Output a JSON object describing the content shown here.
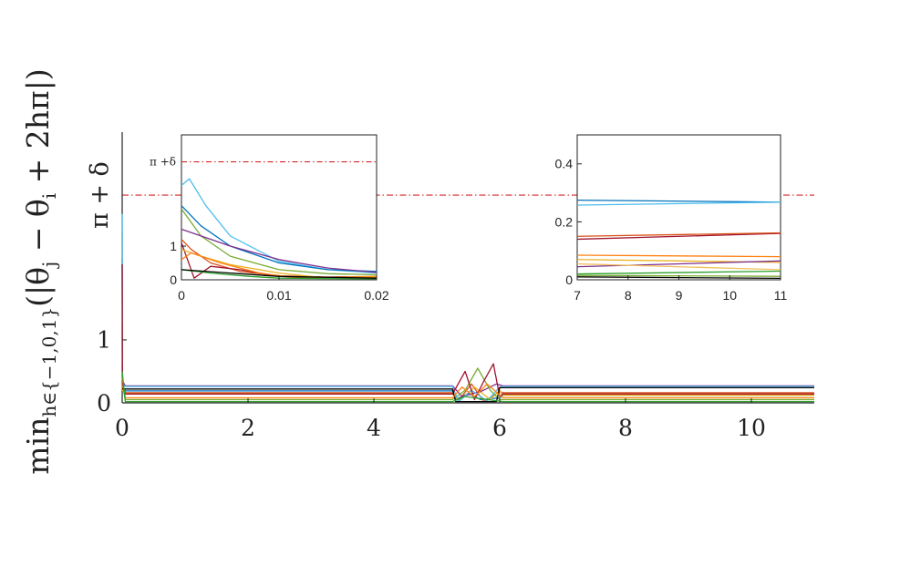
{
  "chart_data": [
    {
      "name": "main",
      "type": "line",
      "ylabel": "min_{h∈{-1,0,1}}(|θ_j − θ_i + 2hπ|)",
      "xlim": [
        0,
        11
      ],
      "ylim": [
        0,
        4.3
      ],
      "x_ticks": [
        "0",
        "2",
        "4",
        "6",
        "8",
        "10"
      ],
      "y_ticks": [
        "0",
        "1"
      ],
      "threshold_label": "π + δ",
      "threshold_value": 3.3,
      "threshold_color": "#d62728",
      "series": [
        {
          "color": "#0072bd",
          "x": [
            0,
            0.004,
            0.05,
            5.25,
            5.3,
            5.5,
            5.7,
            6.0,
            6.05,
            11
          ],
          "y": [
            0.6,
            0.25,
            0.19,
            0.19,
            0.05,
            0.15,
            0.05,
            0.08,
            0.12,
            0.12
          ]
        },
        {
          "color": "#d95319",
          "x": [
            0,
            0.004,
            0.05,
            5.25,
            5.35,
            5.55,
            5.75,
            6.0,
            6.05,
            11
          ],
          "y": [
            1.25,
            0.25,
            0.16,
            0.16,
            0.04,
            0.3,
            0.02,
            0.18,
            0.16,
            0.16
          ]
        },
        {
          "color": "#edb120",
          "x": [
            0,
            0.004,
            0.05,
            5.25,
            5.35,
            5.6,
            5.85,
            6.0,
            6.05,
            11
          ],
          "y": [
            0.9,
            0.2,
            0.14,
            0.14,
            0.03,
            0.25,
            0.05,
            0.2,
            0.12,
            0.12
          ]
        },
        {
          "color": "#7e2f8e",
          "x": [
            0,
            0.004,
            0.05,
            5.25,
            5.4,
            5.7,
            5.95,
            6.05,
            11
          ],
          "y": [
            2.3,
            0.35,
            0.27,
            0.27,
            0.1,
            0.18,
            0.3,
            0.27,
            0.27
          ]
        },
        {
          "color": "#77ac30",
          "x": [
            0,
            0.004,
            0.05,
            5.25,
            5.45,
            5.65,
            5.85,
            6.0,
            6.05,
            11
          ],
          "y": [
            2.7,
            0.3,
            0.05,
            0.05,
            0.2,
            0.55,
            0.2,
            0.05,
            0.05,
            0.05
          ]
        },
        {
          "color": "#4dbeee",
          "x": [
            0,
            0.004,
            0.05,
            5.25,
            5.35,
            5.55,
            5.8,
            6.0,
            6.05,
            11
          ],
          "y": [
            3.0,
            0.3,
            0.26,
            0.26,
            0.02,
            0.2,
            0.03,
            0.25,
            0.26,
            0.26
          ]
        },
        {
          "color": "#a2142f",
          "x": [
            0,
            0.004,
            0.05,
            5.25,
            5.45,
            5.6,
            5.75,
            5.9,
            6.0,
            6.05,
            11
          ],
          "y": [
            2.2,
            0.3,
            0.14,
            0.14,
            0.5,
            0.05,
            0.35,
            0.62,
            0.1,
            0.14,
            0.14
          ]
        },
        {
          "color": "#000000",
          "x": [
            0,
            0.05,
            5.25,
            5.3,
            5.95,
            6.0,
            11
          ],
          "y": [
            0.22,
            0.22,
            0.22,
            0.02,
            0.02,
            0.24,
            0.24
          ]
        },
        {
          "color": "#ff7f0e",
          "x": [
            0,
            0.05,
            5.25,
            5.4,
            5.6,
            5.8,
            6.05,
            11
          ],
          "y": [
            0.4,
            0.08,
            0.08,
            0.25,
            0.1,
            0.3,
            0.08,
            0.08
          ]
        },
        {
          "color": "#2ca02c",
          "x": [
            0,
            0.05,
            5.25,
            5.45,
            6.05,
            11
          ],
          "y": [
            0.5,
            0.02,
            0.02,
            0.1,
            0.02,
            0.02
          ]
        }
      ]
    },
    {
      "name": "inset-early",
      "type": "line",
      "xlim": [
        0,
        0.02
      ],
      "ylim": [
        0,
        4.3
      ],
      "x_ticks": [
        "0",
        "0.01",
        "0.02"
      ],
      "y_ticks": [
        "0",
        "1"
      ],
      "threshold_label": "π +δ",
      "threshold_value": 3.5,
      "series": [
        {
          "color": "#4dbeee",
          "x": [
            0,
            0.0008,
            0.0025,
            0.005,
            0.01,
            0.015,
            0.02
          ],
          "y": [
            2.8,
            3.0,
            2.2,
            1.3,
            0.55,
            0.3,
            0.2
          ]
        },
        {
          "color": "#0072bd",
          "x": [
            0,
            0.002,
            0.005,
            0.01,
            0.015,
            0.02
          ],
          "y": [
            2.2,
            1.6,
            1.0,
            0.5,
            0.3,
            0.25
          ]
        },
        {
          "color": "#77ac30",
          "x": [
            0,
            0.002,
            0.005,
            0.01,
            0.015,
            0.02
          ],
          "y": [
            2.1,
            1.3,
            0.7,
            0.3,
            0.18,
            0.15
          ]
        },
        {
          "color": "#7e2f8e",
          "x": [
            0,
            0.002,
            0.005,
            0.01,
            0.015,
            0.02
          ],
          "y": [
            1.5,
            1.3,
            1.0,
            0.6,
            0.35,
            0.22
          ]
        },
        {
          "color": "#d95319",
          "x": [
            0,
            0.001,
            0.003,
            0.006,
            0.01,
            0.015,
            0.02
          ],
          "y": [
            1.2,
            0.9,
            0.5,
            0.25,
            0.12,
            0.08,
            0.1
          ]
        },
        {
          "color": "#a2142f",
          "x": [
            0,
            0.0013,
            0.003,
            0.006,
            0.01,
            0.02
          ],
          "y": [
            1.1,
            0.05,
            0.4,
            0.3,
            0.1,
            0.05
          ]
        },
        {
          "color": "#edb120",
          "x": [
            0,
            0.002,
            0.005,
            0.01,
            0.015,
            0.02
          ],
          "y": [
            0.9,
            0.7,
            0.45,
            0.2,
            0.05,
            0.1
          ]
        },
        {
          "color": "#ff7f0e",
          "x": [
            0,
            0.001,
            0.004,
            0.008,
            0.012,
            0.02
          ],
          "y": [
            0.6,
            0.8,
            0.5,
            0.2,
            0.05,
            0.08
          ]
        },
        {
          "color": "#2ca02c",
          "x": [
            0,
            0.003,
            0.007,
            0.01,
            0.02
          ],
          "y": [
            0.3,
            0.2,
            0.1,
            0.05,
            0.03
          ]
        },
        {
          "color": "#000000",
          "x": [
            0,
            0.005,
            0.01,
            0.02
          ],
          "y": [
            0.3,
            0.2,
            0.1,
            0.05
          ]
        }
      ]
    },
    {
      "name": "inset-late",
      "type": "line",
      "xlim": [
        7,
        11
      ],
      "ylim": [
        0,
        0.5
      ],
      "x_ticks": [
        "7",
        "8",
        "9",
        "10",
        "11"
      ],
      "y_ticks": [
        "0",
        "0.2",
        "0.4"
      ],
      "series": [
        {
          "color": "#0072bd",
          "x": [
            7,
            11
          ],
          "y": [
            0.275,
            0.268
          ]
        },
        {
          "color": "#4dbeee",
          "x": [
            7,
            11
          ],
          "y": [
            0.258,
            0.268
          ]
        },
        {
          "color": "#a2142f",
          "x": [
            7,
            11
          ],
          "y": [
            0.14,
            0.16
          ]
        },
        {
          "color": "#d95319",
          "x": [
            7,
            11
          ],
          "y": [
            0.15,
            0.162
          ]
        },
        {
          "color": "#ff7f0e",
          "x": [
            7,
            11
          ],
          "y": [
            0.085,
            0.08
          ]
        },
        {
          "color": "#edb120",
          "x": [
            7,
            11
          ],
          "y": [
            0.07,
            0.06
          ]
        },
        {
          "color": "#7e2f8e",
          "x": [
            7,
            11
          ],
          "y": [
            0.045,
            0.065
          ]
        },
        {
          "color": "#f2c05c",
          "x": [
            7,
            11
          ],
          "y": [
            0.055,
            0.035
          ]
        },
        {
          "color": "#2ca02c",
          "x": [
            7,
            11
          ],
          "y": [
            0.02,
            0.03
          ]
        },
        {
          "color": "#77ac30",
          "x": [
            7,
            11
          ],
          "y": [
            0.015,
            0.012
          ]
        },
        {
          "color": "#000000",
          "x": [
            7,
            11
          ],
          "y": [
            0.01,
            0.005
          ]
        }
      ]
    }
  ]
}
